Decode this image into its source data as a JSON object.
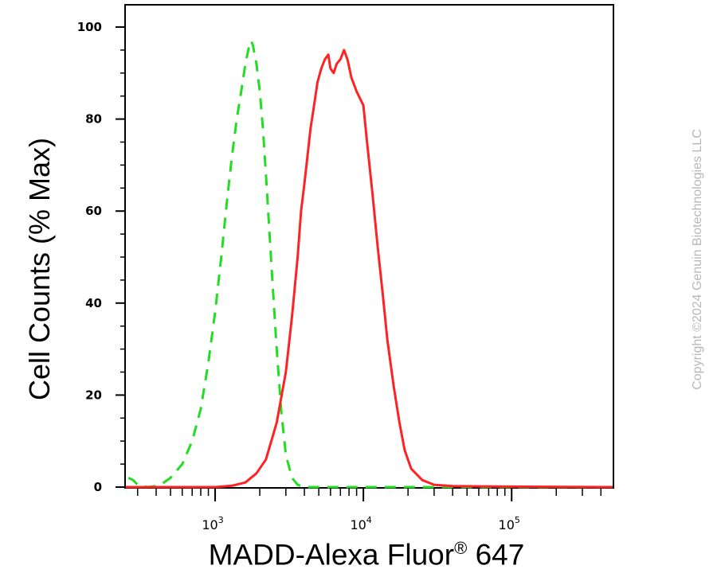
{
  "chart_data": {
    "type": "area",
    "x_scale": "log",
    "xlim": [
      250,
      480000
    ],
    "ylim": [
      0,
      100
    ],
    "y_ticks": [
      0,
      20,
      40,
      60,
      80,
      100
    ],
    "x_tick_labels": [
      {
        "value": 1000,
        "base": "10",
        "exp": "3"
      },
      {
        "value": 10000,
        "base": "10",
        "exp": "4"
      },
      {
        "value": 100000,
        "base": "10",
        "exp": "5"
      }
    ],
    "xlabel_main": "MADD-Alexa Fluor",
    "xlabel_reg": "®",
    "xlabel_tail": " 647",
    "ylabel": "Cell Counts (% Max)",
    "grid": false,
    "legend": "none",
    "series": [
      {
        "color": "#22dd22",
        "style": "dashed",
        "points": [
          [
            260,
            2
          ],
          [
            280,
            1.5
          ],
          [
            300,
            0.5
          ],
          [
            350,
            0
          ],
          [
            420,
            0.3
          ],
          [
            500,
            2
          ],
          [
            600,
            5
          ],
          [
            700,
            10
          ],
          [
            800,
            17
          ],
          [
            900,
            27
          ],
          [
            1000,
            38
          ],
          [
            1100,
            50
          ],
          [
            1200,
            62
          ],
          [
            1300,
            72
          ],
          [
            1400,
            80
          ],
          [
            1500,
            86
          ],
          [
            1600,
            92
          ],
          [
            1700,
            96
          ],
          [
            1750,
            97
          ],
          [
            1800,
            96
          ],
          [
            1900,
            92
          ],
          [
            2000,
            86
          ],
          [
            2100,
            78
          ],
          [
            2200,
            68
          ],
          [
            2400,
            48
          ],
          [
            2600,
            30
          ],
          [
            2800,
            16
          ],
          [
            3000,
            7
          ],
          [
            3300,
            2
          ],
          [
            3600,
            0.5
          ],
          [
            4000,
            0
          ],
          [
            10000,
            0
          ],
          [
            480000,
            0
          ]
        ]
      },
      {
        "color": "#ff2222",
        "style": "solid",
        "points": [
          [
            250,
            0
          ],
          [
            1000,
            0
          ],
          [
            1300,
            0.3
          ],
          [
            1600,
            1
          ],
          [
            1900,
            3
          ],
          [
            2200,
            6
          ],
          [
            2600,
            14
          ],
          [
            3000,
            25
          ],
          [
            3300,
            37
          ],
          [
            3600,
            50
          ],
          [
            3800,
            60
          ],
          [
            4000,
            66
          ],
          [
            4200,
            72
          ],
          [
            4400,
            78
          ],
          [
            4600,
            82
          ],
          [
            4900,
            88
          ],
          [
            5200,
            91
          ],
          [
            5500,
            93
          ],
          [
            5800,
            94
          ],
          [
            6000,
            91
          ],
          [
            6300,
            90
          ],
          [
            6600,
            92
          ],
          [
            7000,
            93
          ],
          [
            7400,
            95
          ],
          [
            7800,
            93
          ],
          [
            8300,
            89
          ],
          [
            9000,
            86
          ],
          [
            10000,
            83
          ],
          [
            10500,
            76
          ],
          [
            11500,
            64
          ],
          [
            12500,
            52
          ],
          [
            13500,
            42
          ],
          [
            14500,
            32
          ],
          [
            16000,
            22
          ],
          [
            17500,
            14
          ],
          [
            19000,
            8
          ],
          [
            21000,
            4
          ],
          [
            25000,
            1.5
          ],
          [
            30000,
            0.5
          ],
          [
            40000,
            0.2
          ],
          [
            100000,
            0.1
          ],
          [
            480000,
            0
          ]
        ]
      }
    ]
  },
  "copyright": "Copyright ©2024 Genuin Biotechnologies LLC"
}
